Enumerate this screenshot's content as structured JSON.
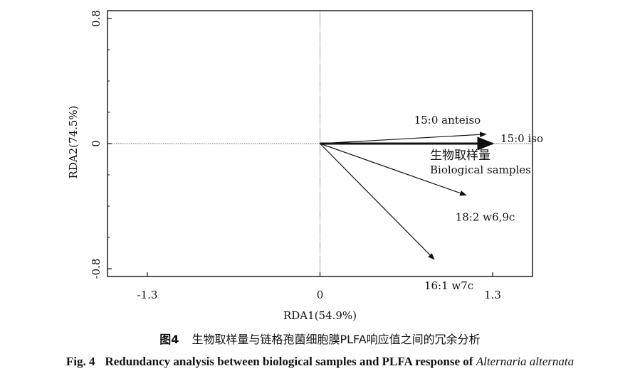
{
  "chart_data": {
    "type": "biplot",
    "xlabel": "RDA1(54.9%)",
    "ylabel": "RDA2(74.5%)",
    "xlim": [
      -1.6,
      1.6
    ],
    "ylim": [
      -0.85,
      0.85
    ],
    "xticks": [
      -1.3,
      0,
      1.3
    ],
    "xtick_labels": [
      "-1.3",
      "0",
      "1.3"
    ],
    "yticks": [
      -0.8,
      0,
      0.8
    ],
    "ytick_labels": [
      "-0.8",
      "0",
      "0.8"
    ],
    "grid": false,
    "zero_lines": true,
    "vectors": [
      {
        "label": "15:0 anteiso",
        "x": 1.25,
        "y": 0.06
      },
      {
        "label": "15:0 iso",
        "x": 1.3,
        "y": 0.0
      },
      {
        "label": "18:2 w6,9c",
        "x": 1.1,
        "y": -0.33
      },
      {
        "label": "16:1 w7c",
        "x": 0.86,
        "y": -0.74
      }
    ],
    "response_vector": {
      "label_cn": "生物取样量",
      "label_en": "Biological samples",
      "x": 1.3,
      "y": 0.0
    }
  },
  "caption": {
    "cn_fig_no": "图4",
    "cn_text": "生物取样量与链格孢菌细胞膜PLFA响应值之间的冗余分析",
    "en_fig_no": "Fig. 4",
    "en_text": "Redundancy analysis between biological samples and PLFA response of",
    "en_species": "Alternaria alternata"
  }
}
